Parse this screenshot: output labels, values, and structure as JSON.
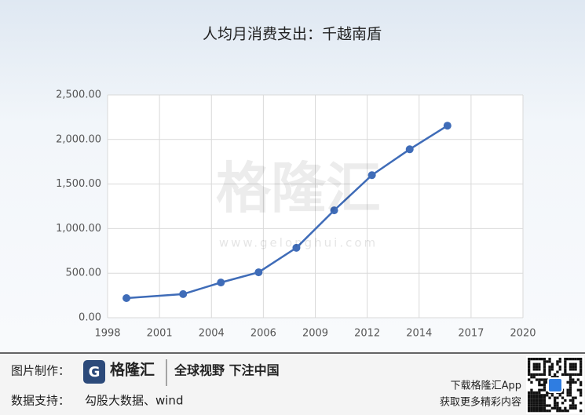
{
  "chart_data": {
    "type": "line",
    "title": "人均月消费支出：千越南盾",
    "x": [
      1999,
      2002,
      2004,
      2006,
      2008,
      2010,
      2012,
      2014,
      2016
    ],
    "series": [
      {
        "name": "人均月消费支出",
        "color": "#3f6cb8",
        "values": [
          220,
          265,
          395,
          510,
          785,
          1205,
          1600,
          1890,
          2155
        ]
      }
    ],
    "xlim": [
      1998,
      2020
    ],
    "xticks": [
      1998,
      {
        "value": 2000.75,
        "label": "2001"
      },
      {
        "value": 2003.5,
        "label": "2004"
      },
      {
        "value": 2006.25,
        "label": "2006"
      },
      2009,
      {
        "value": 2011.75,
        "label": "2012"
      },
      {
        "value": 2014.5,
        "label": "2014"
      },
      {
        "value": 2017.25,
        "label": "2017"
      },
      2020
    ],
    "ylim": [
      0,
      2500
    ],
    "yticks": [
      {
        "value": 0,
        "label": "0.00"
      },
      {
        "value": 500,
        "label": "500.00"
      },
      {
        "value": 1000,
        "label": "1,000.00"
      },
      {
        "value": 1500,
        "label": "1,500.00"
      },
      {
        "value": 2000,
        "label": "2,000.00"
      },
      {
        "value": 2500,
        "label": "2,500.00"
      }
    ],
    "grid": true
  },
  "watermark": {
    "logo": "格隆汇",
    "url": "www.gelonghui.com"
  },
  "footer": {
    "made_label": "图片制作：",
    "brand": "格隆汇",
    "slogan": "全球视野 下注中国",
    "data_label": "数据支持：",
    "data_source": "勾股大数据、wind",
    "app_line1": "下载格隆汇App",
    "app_line2": "获取更多精彩内容"
  }
}
